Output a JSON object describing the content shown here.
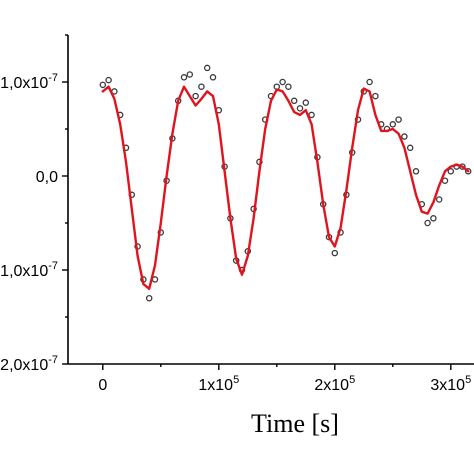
{
  "chart_data": {
    "type": "scatter",
    "title": "",
    "xlabel": "Time [s]",
    "ylabel": "",
    "xlim": [
      -30000,
      320000
    ],
    "ylim": [
      -2e-07,
      1.5e-07
    ],
    "grid": false,
    "legend": "none",
    "x_ticks": [
      {
        "value": 0,
        "base": "0",
        "exp": ""
      },
      {
        "value": 100000,
        "base": "1x10",
        "exp": "5"
      },
      {
        "value": 200000,
        "base": "2x10",
        "exp": "5"
      },
      {
        "value": 300000,
        "base": "3x10",
        "exp": "5"
      }
    ],
    "y_ticks": [
      {
        "value": 1e-07,
        "base": "1,0x10",
        "exp": "-7"
      },
      {
        "value": 0,
        "base": "0,0",
        "exp": ""
      },
      {
        "value": -1e-07,
        "base": "-1,0x10",
        "exp": "-7"
      },
      {
        "value": -2e-07,
        "base": "-2,0x10",
        "exp": "-7"
      }
    ],
    "series": [
      {
        "kind": "markers",
        "color": "#3a3a3a",
        "x": [
          0,
          5000,
          10000,
          15000,
          20000,
          25000,
          30000,
          35000,
          40000,
          45000,
          50000,
          55000,
          60000,
          65000,
          70000,
          75000,
          80000,
          85000,
          90000,
          95000,
          100000,
          105000,
          110000,
          115000,
          120000,
          125000,
          130000,
          135000,
          140000,
          145000,
          150000,
          155000,
          160000,
          165000,
          170000,
          175000,
          180000,
          185000,
          190000,
          195000,
          200000,
          205000,
          210000,
          215000,
          220000,
          225000,
          230000,
          235000,
          240000,
          245000,
          250000,
          255000,
          260000,
          265000,
          270000,
          275000,
          280000,
          285000,
          290000,
          295000,
          300000,
          305000,
          310000,
          315000
        ],
        "y": [
          9.7e-08,
          1.02e-07,
          9e-08,
          6.5e-08,
          3e-08,
          -2e-08,
          -7.5e-08,
          -1.1e-07,
          -1.3e-07,
          -1.1e-07,
          -6e-08,
          -5e-09,
          4e-08,
          8e-08,
          1.05e-07,
          1.08e-07,
          8.5e-08,
          9.5e-08,
          1.15e-07,
          1.05e-07,
          7e-08,
          1e-08,
          -4.5e-08,
          -9e-08,
          -1e-07,
          -8e-08,
          -3.5e-08,
          1.5e-08,
          6e-08,
          8.5e-08,
          9.5e-08,
          1e-07,
          9.5e-08,
          8e-08,
          7.2e-08,
          7.8e-08,
          6.5e-08,
          2e-08,
          -3e-08,
          -6.5e-08,
          -8.2e-08,
          -6e-08,
          -2e-08,
          2.5e-08,
          6e-08,
          9e-08,
          1e-07,
          8.5e-08,
          5.5e-08,
          5e-08,
          5.5e-08,
          6e-08,
          4.2e-08,
          3e-08,
          5e-09,
          -3e-08,
          -5e-08,
          -4.5e-08,
          -2.5e-08,
          -5e-09,
          5e-09,
          1e-08,
          1e-08,
          5e-09
        ]
      },
      {
        "kind": "line",
        "color": "#e0141e",
        "x": [
          0,
          5000,
          10000,
          15000,
          20000,
          25000,
          30000,
          35000,
          40000,
          45000,
          50000,
          55000,
          60000,
          65000,
          70000,
          75000,
          80000,
          85000,
          90000,
          95000,
          100000,
          105000,
          110000,
          115000,
          120000,
          125000,
          130000,
          135000,
          140000,
          145000,
          150000,
          155000,
          160000,
          165000,
          170000,
          175000,
          180000,
          185000,
          190000,
          195000,
          200000,
          205000,
          210000,
          215000,
          220000,
          225000,
          230000,
          235000,
          240000,
          245000,
          250000,
          255000,
          260000,
          265000,
          270000,
          275000,
          280000,
          285000,
          290000,
          295000,
          300000,
          305000,
          310000,
          315000
        ],
        "y": [
          9e-08,
          9.5e-08,
          8.2e-08,
          5.5e-08,
          1.5e-08,
          -3.5e-08,
          -8.5e-08,
          -1.15e-07,
          -1.2e-07,
          -9.5e-08,
          -5e-08,
          0.0,
          4.5e-08,
          8e-08,
          9.5e-08,
          8.5e-08,
          7.5e-08,
          8.2e-08,
          9e-08,
          8.5e-08,
          5.5e-08,
          5e-09,
          -4.5e-08,
          -8.8e-08,
          -1.05e-07,
          -8.5e-08,
          -4.5e-08,
          5e-09,
          5e-08,
          8e-08,
          9.2e-08,
          9e-08,
          8e-08,
          6.8e-08,
          6.5e-08,
          7e-08,
          5.5e-08,
          1.5e-08,
          -3e-08,
          -6.5e-08,
          -7.5e-08,
          -5.5e-08,
          -1.5e-08,
          3e-08,
          7e-08,
          9.3e-08,
          9e-08,
          6.5e-08,
          4.8e-08,
          4.8e-08,
          5e-08,
          4.5e-08,
          3e-08,
          5e-09,
          -2e-08,
          -3.8e-08,
          -4e-08,
          -2.8e-08,
          -1e-08,
          5e-09,
          1e-08,
          1.2e-08,
          1e-08,
          5e-09
        ]
      }
    ]
  }
}
